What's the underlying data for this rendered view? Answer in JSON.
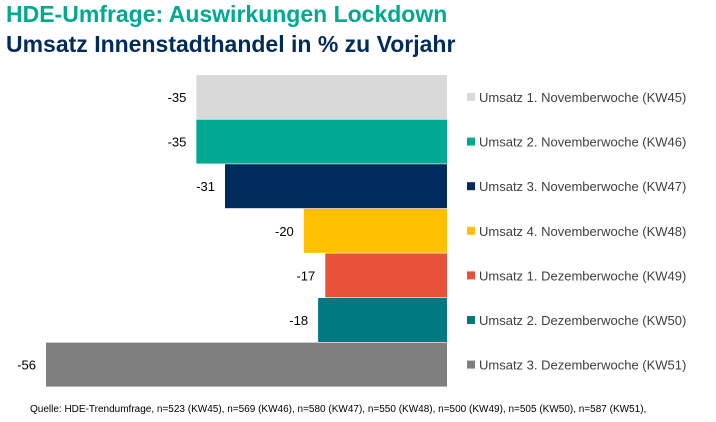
{
  "header": {
    "title": "HDE-Umfrage: Auswirkungen Lockdown",
    "subtitle": "Umsatz Innenstadthandel in % zu Vorjahr"
  },
  "source": "Quelle: HDE-Trendumfrage, n=523 (KW45), n=569 (KW46), n=580 (KW47), n=550 (KW48), n=500 (KW49), n=505 (KW50), n=587 (KW51),",
  "chart_data": {
    "type": "bar",
    "orientation": "horizontal",
    "title": "Umsatz Innenstadthandel in % zu Vorjahr",
    "categories": [
      "Umsatz 1. Novemberwoche (KW45)",
      "Umsatz 2. Novemberwoche (KW46)",
      "Umsatz 3. Novemberwoche (KW47)",
      "Umsatz 4. Novemberwoche (KW48)",
      "Umsatz 1. Dezemberwoche (KW49)",
      "Umsatz 2. Dezemberwoche (KW50)",
      "Umsatz 3. Dezemberwoche (KW51)"
    ],
    "values": [
      -35,
      -35,
      -31,
      -20,
      -17,
      -18,
      -56
    ],
    "labels": [
      "-35",
      "-35",
      "-31",
      "-20",
      "-17",
      "-18",
      "-56"
    ],
    "colors": [
      "#d9d9d9",
      "#00a98f",
      "#002b5c",
      "#ffc000",
      "#e8523a",
      "#007a80",
      "#7f7f7f"
    ],
    "legend_position": "right",
    "grid": false
  }
}
